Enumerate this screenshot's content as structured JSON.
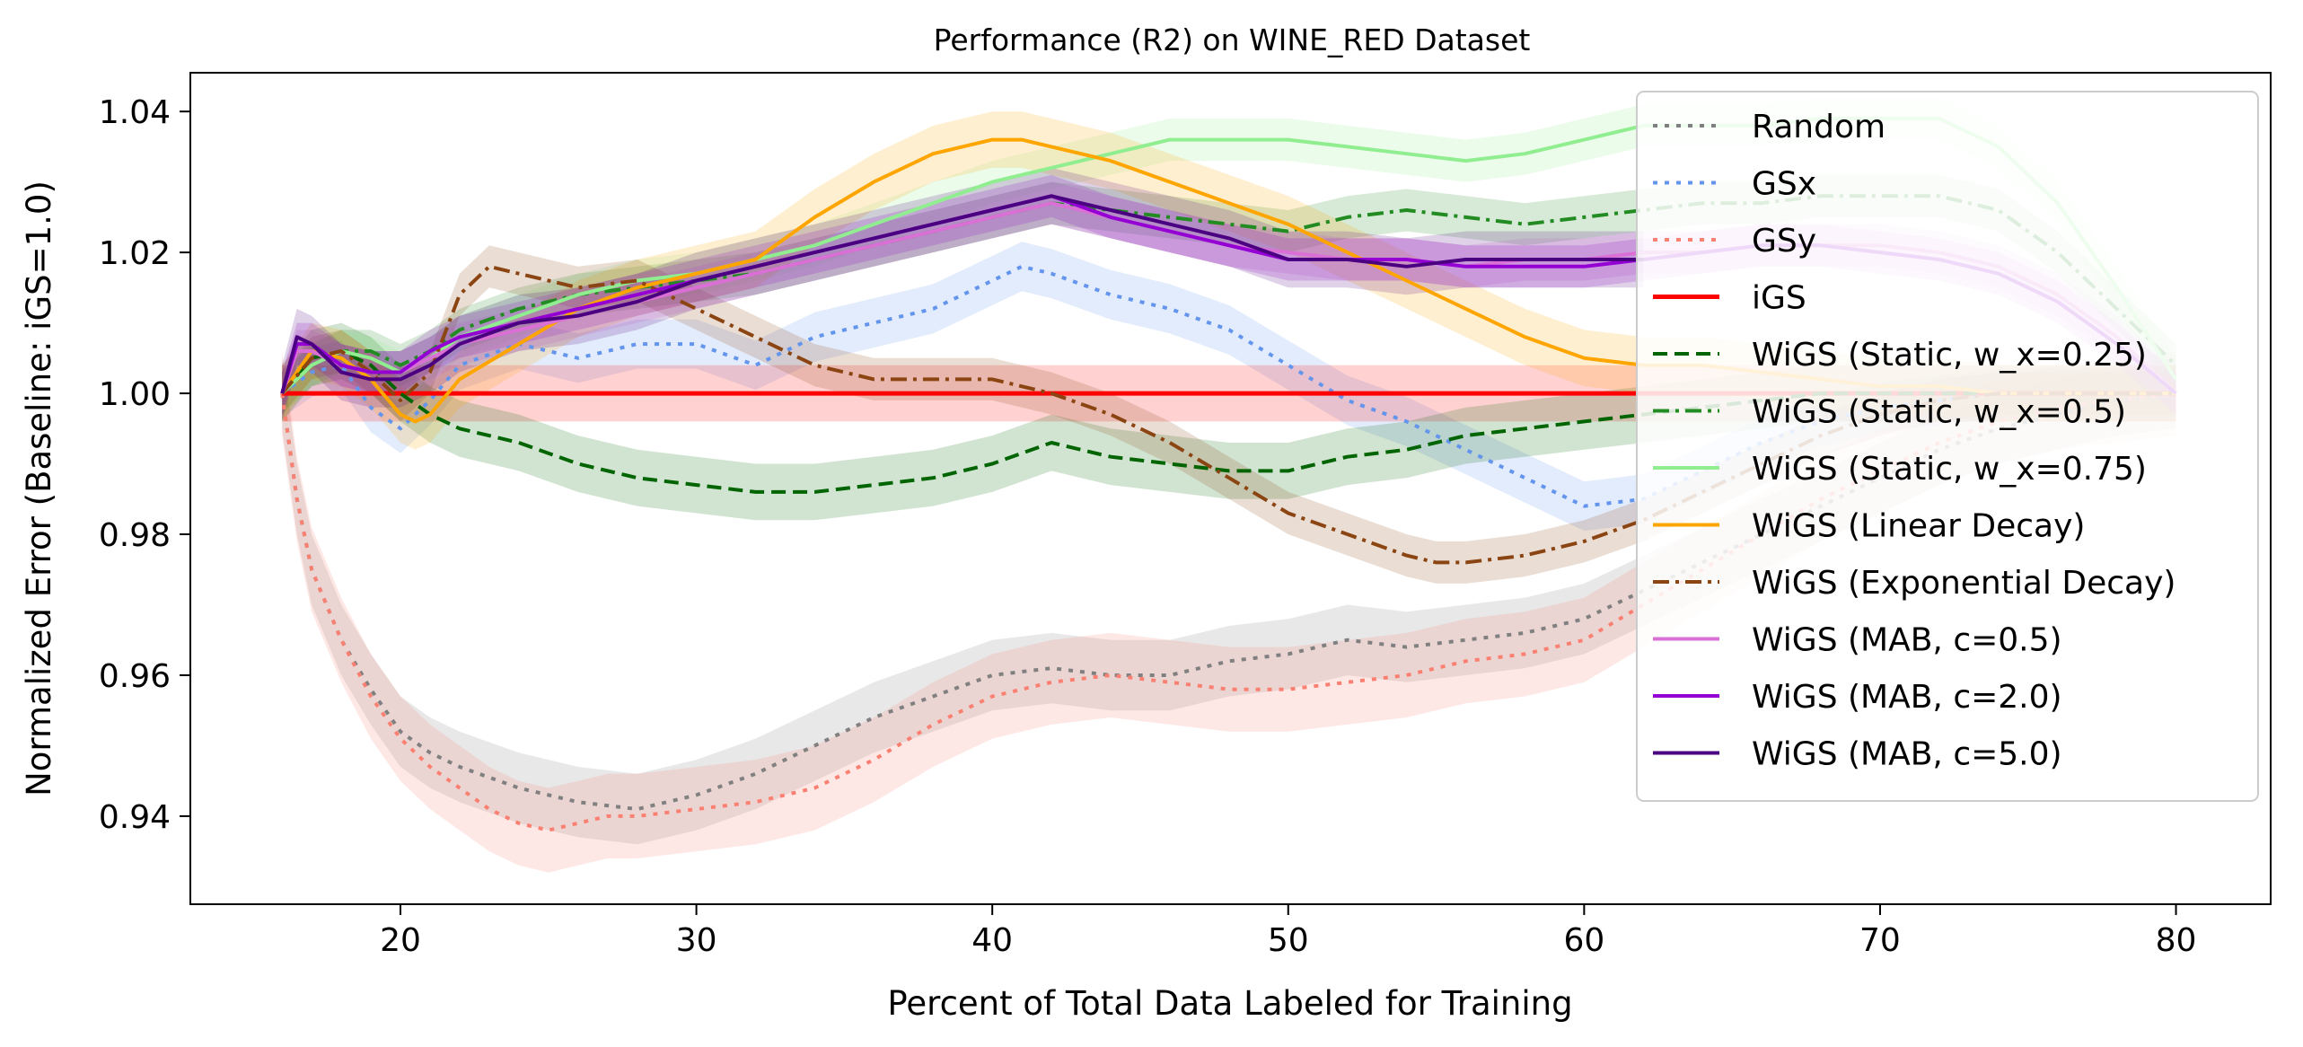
{
  "chart_data": {
    "type": "line",
    "title": "Performance (R2) on WINE_RED Dataset",
    "xlabel": "Percent of Total Data Labeled for Training",
    "ylabel": "Normalized Error (Baseline: iGS=1.0)",
    "xlim": [
      12.9,
      83.2
    ],
    "ylim": [
      0.9275,
      1.0455
    ],
    "xticks": [
      20,
      30,
      40,
      50,
      60,
      70,
      80
    ],
    "yticks": [
      0.94,
      0.96,
      0.98,
      1.0,
      1.02,
      1.04
    ],
    "xtick_labels": [
      "20",
      "30",
      "40",
      "50",
      "60",
      "70",
      "80"
    ],
    "ytick_labels": [
      "0.94",
      "0.96",
      "0.98",
      "1.00",
      "1.02",
      "1.04"
    ],
    "grid": false,
    "legend_position": "upper right",
    "bands": "shaded ± interval around each series",
    "series": [
      {
        "name": "Random",
        "color": "#808080",
        "dash": "dotted",
        "band": 0.005,
        "x": [
          16,
          16.5,
          17,
          18,
          19,
          20,
          21,
          22,
          24,
          26,
          28,
          30,
          32,
          34,
          36,
          38,
          40,
          42,
          44,
          46,
          48,
          50,
          52,
          54,
          56,
          58,
          60,
          62,
          64,
          66,
          68,
          70,
          72,
          74,
          76,
          78,
          80
        ],
        "y": [
          1.0,
          0.985,
          0.975,
          0.965,
          0.958,
          0.952,
          0.949,
          0.947,
          0.944,
          0.942,
          0.941,
          0.943,
          0.946,
          0.95,
          0.954,
          0.957,
          0.96,
          0.961,
          0.96,
          0.96,
          0.962,
          0.963,
          0.965,
          0.964,
          0.965,
          0.966,
          0.968,
          0.972,
          0.976,
          0.98,
          0.984,
          0.988,
          0.992,
          0.995,
          0.997,
          0.999,
          1.0
        ]
      },
      {
        "name": "GSx",
        "color": "#6495ED",
        "dash": "dotted",
        "band": 0.0035,
        "x": [
          16,
          17,
          18,
          19,
          20,
          21,
          22,
          24,
          26,
          28,
          30,
          32,
          34,
          36,
          38,
          40,
          41,
          42,
          44,
          46,
          48,
          50,
          52,
          54,
          56,
          58,
          60,
          62,
          64,
          66,
          68,
          70,
          72,
          74,
          76,
          78,
          80
        ],
        "y": [
          1.0,
          1.003,
          1.004,
          0.998,
          0.995,
          0.999,
          1.004,
          1.007,
          1.005,
          1.007,
          1.007,
          1.004,
          1.008,
          1.01,
          1.012,
          1.016,
          1.018,
          1.017,
          1.014,
          1.012,
          1.009,
          1.004,
          0.999,
          0.996,
          0.992,
          0.988,
          0.984,
          0.985,
          0.989,
          0.993,
          0.996,
          0.998,
          0.999,
          1.0,
          1.0,
          1.0,
          1.0
        ]
      },
      {
        "name": "GSy",
        "color": "#FA8072",
        "dash": "dotted",
        "band": 0.006,
        "x": [
          16,
          16.5,
          17,
          18,
          19,
          20,
          21,
          22,
          23,
          24,
          25,
          26,
          27,
          28,
          30,
          32,
          34,
          36,
          38,
          40,
          42,
          44,
          46,
          48,
          50,
          52,
          54,
          56,
          58,
          60,
          62,
          64,
          66,
          68,
          70,
          72,
          74,
          76,
          78,
          80
        ],
        "y": [
          1.0,
          0.985,
          0.975,
          0.965,
          0.957,
          0.951,
          0.947,
          0.944,
          0.941,
          0.939,
          0.938,
          0.939,
          0.94,
          0.94,
          0.941,
          0.942,
          0.944,
          0.948,
          0.953,
          0.957,
          0.959,
          0.96,
          0.959,
          0.958,
          0.958,
          0.959,
          0.96,
          0.962,
          0.963,
          0.965,
          0.97,
          0.975,
          0.98,
          0.985,
          0.989,
          0.993,
          0.996,
          0.998,
          0.999,
          1.0
        ]
      },
      {
        "name": "iGS",
        "color": "#FF0000",
        "dash": "solid",
        "band": 0.004,
        "width": 5,
        "x": [
          16,
          80
        ],
        "y": [
          1.0,
          1.0
        ]
      },
      {
        "name": "WiGS (Static, w_x=0.25)",
        "color": "#006400",
        "dash": "dashed",
        "band": 0.004,
        "x": [
          16,
          17,
          18,
          19,
          20,
          21,
          22,
          24,
          26,
          28,
          30,
          32,
          34,
          36,
          38,
          40,
          42,
          44,
          46,
          48,
          50,
          52,
          54,
          56,
          58,
          60,
          62,
          64,
          66,
          68,
          70,
          72,
          74,
          76,
          78,
          80
        ],
        "y": [
          1.0,
          1.005,
          1.006,
          1.004,
          1.0,
          0.997,
          0.995,
          0.993,
          0.99,
          0.988,
          0.987,
          0.986,
          0.986,
          0.987,
          0.988,
          0.99,
          0.993,
          0.991,
          0.99,
          0.989,
          0.989,
          0.991,
          0.992,
          0.994,
          0.995,
          0.996,
          0.997,
          0.998,
          0.999,
          1.0,
          1.0,
          1.0,
          1.0,
          1.0,
          1.0,
          1.0
        ]
      },
      {
        "name": "WiGS (Static, w_x=0.5)",
        "color": "#228B22",
        "dash": "dashdot",
        "band": 0.003,
        "x": [
          16,
          17,
          18,
          19,
          20,
          21,
          22,
          24,
          26,
          28,
          30,
          32,
          34,
          36,
          38,
          40,
          42,
          44,
          46,
          48,
          50,
          52,
          54,
          56,
          58,
          60,
          62,
          64,
          66,
          68,
          70,
          72,
          74,
          76,
          78,
          80
        ],
        "y": [
          1.0,
          1.004,
          1.006,
          1.006,
          1.004,
          1.006,
          1.009,
          1.012,
          1.014,
          1.015,
          1.016,
          1.017,
          1.019,
          1.021,
          1.023,
          1.025,
          1.027,
          1.026,
          1.025,
          1.024,
          1.023,
          1.025,
          1.026,
          1.025,
          1.024,
          1.025,
          1.026,
          1.027,
          1.027,
          1.028,
          1.028,
          1.028,
          1.026,
          1.02,
          1.012,
          1.004
        ]
      },
      {
        "name": "WiGS (Static, w_x=0.75)",
        "color": "#90EE90",
        "dash": "solid",
        "band": 0.003,
        "x": [
          16,
          17,
          18,
          19,
          20,
          21,
          22,
          24,
          26,
          28,
          30,
          32,
          34,
          36,
          38,
          40,
          42,
          44,
          46,
          48,
          50,
          52,
          54,
          56,
          58,
          60,
          62,
          64,
          66,
          68,
          70,
          72,
          74,
          76,
          78,
          80
        ],
        "y": [
          1.0,
          1.004,
          1.006,
          1.005,
          1.003,
          1.005,
          1.008,
          1.011,
          1.014,
          1.016,
          1.017,
          1.019,
          1.021,
          1.024,
          1.027,
          1.03,
          1.032,
          1.034,
          1.036,
          1.036,
          1.036,
          1.035,
          1.034,
          1.033,
          1.034,
          1.036,
          1.038,
          1.038,
          1.038,
          1.039,
          1.039,
          1.039,
          1.035,
          1.027,
          1.015,
          1.002
        ]
      },
      {
        "name": "WiGS (Linear Decay)",
        "color": "#FFA500",
        "dash": "solid",
        "band": 0.004,
        "x": [
          16,
          16.5,
          17,
          18,
          19,
          20,
          20.5,
          21,
          22,
          24,
          26,
          28,
          30,
          32,
          34,
          36,
          38,
          40,
          41,
          42,
          44,
          46,
          48,
          50,
          52,
          54,
          56,
          58,
          60,
          62,
          64,
          66,
          68,
          70,
          72,
          74,
          76,
          78,
          80
        ],
        "y": [
          1.0,
          1.003,
          1.006,
          1.005,
          1.002,
          0.997,
          0.996,
          0.997,
          1.002,
          1.007,
          1.012,
          1.015,
          1.017,
          1.019,
          1.025,
          1.03,
          1.034,
          1.036,
          1.036,
          1.035,
          1.033,
          1.03,
          1.027,
          1.024,
          1.02,
          1.016,
          1.012,
          1.008,
          1.005,
          1.004,
          1.004,
          1.003,
          1.002,
          1.001,
          1.001,
          1.0,
          1.0,
          1.0,
          1.0
        ]
      },
      {
        "name": "WiGS (Exponential Decay)",
        "color": "#8B4513",
        "dash": "dashdot",
        "band": 0.003,
        "x": [
          16,
          17,
          18,
          19,
          20,
          21,
          22,
          23,
          24,
          26,
          28,
          30,
          32,
          34,
          36,
          38,
          40,
          42,
          44,
          46,
          48,
          50,
          52,
          54,
          55,
          56,
          58,
          60,
          62,
          64,
          66,
          68,
          70,
          72,
          74,
          76,
          78,
          80
        ],
        "y": [
          1.0,
          1.005,
          1.006,
          1.003,
          0.999,
          1.003,
          1.014,
          1.018,
          1.017,
          1.015,
          1.016,
          1.012,
          1.008,
          1.004,
          1.002,
          1.002,
          1.002,
          1.0,
          0.997,
          0.993,
          0.988,
          0.983,
          0.98,
          0.977,
          0.976,
          0.976,
          0.977,
          0.979,
          0.982,
          0.986,
          0.99,
          0.994,
          0.997,
          0.999,
          1.0,
          1.0,
          1.0,
          1.0
        ]
      },
      {
        "name": "WiGS (MAB, c=0.5)",
        "color": "#DA70D6",
        "dash": "solid",
        "band": 0.003,
        "x": [
          16,
          16.5,
          17,
          18,
          19,
          20,
          21,
          22,
          24,
          26,
          28,
          30,
          32,
          34,
          36,
          38,
          40,
          42,
          44,
          46,
          48,
          50,
          52,
          54,
          56,
          58,
          60,
          62,
          64,
          66,
          68,
          70,
          72,
          74,
          76,
          78,
          80
        ],
        "y": [
          1.0,
          1.006,
          1.006,
          1.004,
          1.003,
          1.003,
          1.005,
          1.007,
          1.009,
          1.011,
          1.013,
          1.015,
          1.017,
          1.019,
          1.021,
          1.023,
          1.025,
          1.027,
          1.025,
          1.023,
          1.021,
          1.02,
          1.019,
          1.019,
          1.018,
          1.019,
          1.019,
          1.02,
          1.02,
          1.021,
          1.021,
          1.021,
          1.02,
          1.018,
          1.014,
          1.008,
          1.0
        ]
      },
      {
        "name": "WiGS (MAB, c=2.0)",
        "color": "#9400D3",
        "dash": "solid",
        "band": 0.003,
        "x": [
          16,
          16.5,
          17,
          18,
          19,
          20,
          21,
          22,
          24,
          26,
          28,
          30,
          32,
          34,
          36,
          38,
          40,
          42,
          44,
          46,
          48,
          50,
          52,
          54,
          56,
          58,
          60,
          62,
          64,
          66,
          68,
          70,
          72,
          74,
          76,
          78,
          80
        ],
        "y": [
          1.0,
          1.007,
          1.007,
          1.004,
          1.003,
          1.003,
          1.006,
          1.008,
          1.01,
          1.012,
          1.014,
          1.016,
          1.018,
          1.02,
          1.022,
          1.024,
          1.026,
          1.028,
          1.025,
          1.023,
          1.021,
          1.019,
          1.019,
          1.019,
          1.018,
          1.018,
          1.018,
          1.019,
          1.02,
          1.021,
          1.021,
          1.02,
          1.019,
          1.017,
          1.013,
          1.007,
          1.0
        ]
      },
      {
        "name": "WiGS (MAB, c=5.0)",
        "color": "#4B0082",
        "dash": "solid",
        "band": 0.004,
        "x": [
          16,
          16.5,
          17,
          18,
          19,
          20,
          21,
          22,
          24,
          26,
          28,
          30,
          32,
          34,
          36,
          38,
          40,
          41,
          42,
          43,
          44,
          46,
          48,
          50,
          52,
          54,
          56,
          58,
          60,
          62
        ],
        "y": [
          1.0,
          1.008,
          1.007,
          1.003,
          1.002,
          1.002,
          1.004,
          1.007,
          1.01,
          1.011,
          1.013,
          1.016,
          1.018,
          1.02,
          1.022,
          1.024,
          1.026,
          1.027,
          1.028,
          1.027,
          1.026,
          1.024,
          1.022,
          1.019,
          1.019,
          1.018,
          1.019,
          1.019,
          1.019,
          1.019
        ]
      }
    ]
  }
}
